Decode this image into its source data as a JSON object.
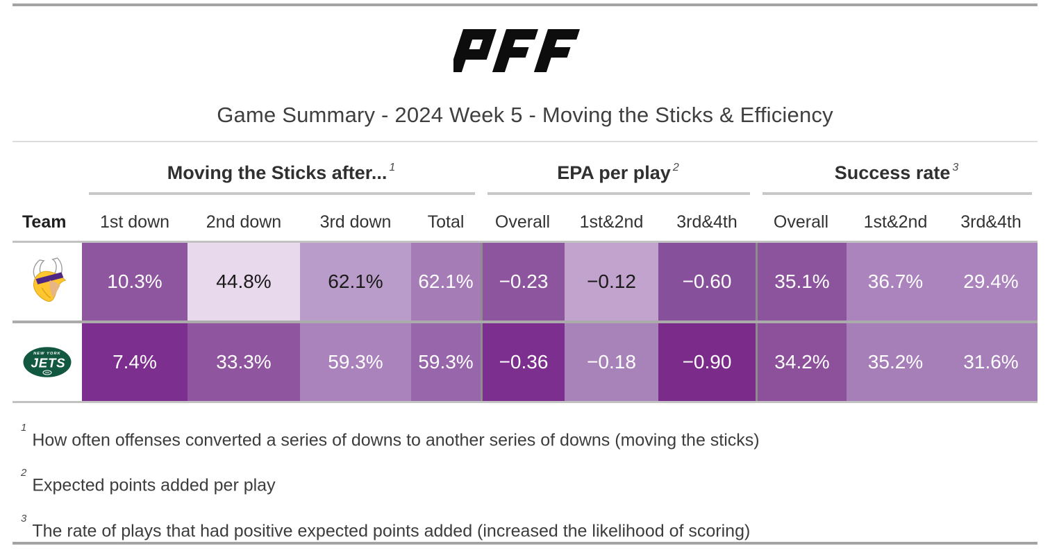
{
  "brand_name": "PFF",
  "chart_data": {
    "type": "table",
    "title": "Game Summary - 2024 Week 5 - Moving the Sticks & Efficiency",
    "team_column_header": "Team",
    "groups": [
      {
        "label": "Moving the Sticks after...",
        "footnote_ref": "1",
        "columns": [
          "1st down",
          "2nd down",
          "3rd down",
          "Total"
        ]
      },
      {
        "label": "EPA per play",
        "footnote_ref": "2",
        "columns": [
          "Overall",
          "1st&2nd",
          "3rd&4th"
        ]
      },
      {
        "label": "Success rate",
        "footnote_ref": "3",
        "columns": [
          "Overall",
          "1st&2nd",
          "3rd&4th"
        ]
      }
    ],
    "rows": [
      {
        "team": "Minnesota Vikings",
        "logo": "vikings-logo",
        "cells": [
          {
            "value": "10.3%",
            "bg": "#8e569e",
            "fg": "#ffffff"
          },
          {
            "value": "44.8%",
            "bg": "#e8d9ec",
            "fg": "#1a1a1a"
          },
          {
            "value": "62.1%",
            "bg": "#b99cc9",
            "fg": "#1a1a1a"
          },
          {
            "value": "62.1%",
            "bg": "#a67cb7",
            "fg": "#ffffff"
          },
          {
            "value": "−0.23",
            "bg": "#8d559d",
            "fg": "#ffffff"
          },
          {
            "value": "−0.12",
            "bg": "#c1a3ce",
            "fg": "#1a1a1a"
          },
          {
            "value": "−0.60",
            "bg": "#87509a",
            "fg": "#ffffff"
          },
          {
            "value": "35.1%",
            "bg": "#8d549e",
            "fg": "#ffffff"
          },
          {
            "value": "36.7%",
            "bg": "#ab84bd",
            "fg": "#ffffff"
          },
          {
            "value": "29.4%",
            "bg": "#ab84bd",
            "fg": "#ffffff"
          }
        ]
      },
      {
        "team": "New York Jets",
        "logo": "jets-logo",
        "cells": [
          {
            "value": "7.4%",
            "bg": "#7c2f8e",
            "fg": "#ffffff"
          },
          {
            "value": "33.3%",
            "bg": "#90559f",
            "fg": "#ffffff"
          },
          {
            "value": "59.3%",
            "bg": "#aa82bc",
            "fg": "#ffffff"
          },
          {
            "value": "59.3%",
            "bg": "#9866aa",
            "fg": "#ffffff"
          },
          {
            "value": "−0.36",
            "bg": "#7c2f8e",
            "fg": "#ffffff"
          },
          {
            "value": "−0.18",
            "bg": "#a783b9",
            "fg": "#ffffff"
          },
          {
            "value": "−0.90",
            "bg": "#7b2c8a",
            "fg": "#ffffff"
          },
          {
            "value": "34.2%",
            "bg": "#8d519c",
            "fg": "#ffffff"
          },
          {
            "value": "35.2%",
            "bg": "#a67eb8",
            "fg": "#ffffff"
          },
          {
            "value": "31.6%",
            "bg": "#a67eb8",
            "fg": "#ffffff"
          }
        ]
      }
    ]
  },
  "footnotes": [
    {
      "ref": "1",
      "text": "How often offenses converted a series of downs to another series of downs (moving the sticks)"
    },
    {
      "ref": "2",
      "text": "Expected points added per play"
    },
    {
      "ref": "3",
      "text": "The rate of plays that had positive expected points added (increased the likelihood of scoring)"
    }
  ],
  "colors": {
    "divider_gray": "#a4a4a4",
    "brand_black": "#0d0d0d",
    "vikings_purple": "#4f2683",
    "vikings_gold": "#ffc62f",
    "jets_green": "#125740"
  }
}
